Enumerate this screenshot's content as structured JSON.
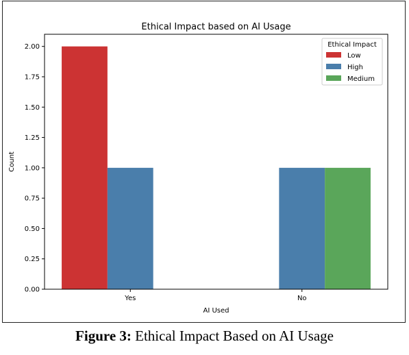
{
  "chart_data": {
    "type": "bar",
    "title": "Ethical Impact based on AI Usage",
    "xlabel": "AI Used",
    "ylabel": "Count",
    "categories": [
      "Yes",
      "No"
    ],
    "ylim": [
      0,
      2.1
    ],
    "yticks": [
      "0.00",
      "0.25",
      "0.50",
      "0.75",
      "1.00",
      "1.25",
      "1.50",
      "1.75",
      "2.00"
    ],
    "ytick_values": [
      0,
      0.25,
      0.5,
      0.75,
      1.0,
      1.25,
      1.5,
      1.75,
      2.0
    ],
    "grid": false,
    "legend": {
      "title": "Ethical Impact",
      "placement": "top-right"
    },
    "series": [
      {
        "name": "Low",
        "color": "#cc3333",
        "values": [
          2,
          0
        ]
      },
      {
        "name": "High",
        "color": "#4a7eab",
        "values": [
          1,
          1
        ]
      },
      {
        "name": "Medium",
        "color": "#5aa65a",
        "values": [
          0,
          1
        ]
      }
    ]
  },
  "caption": {
    "label": "Figure 3:",
    "text": " Ethical Impact Based on AI Usage"
  }
}
